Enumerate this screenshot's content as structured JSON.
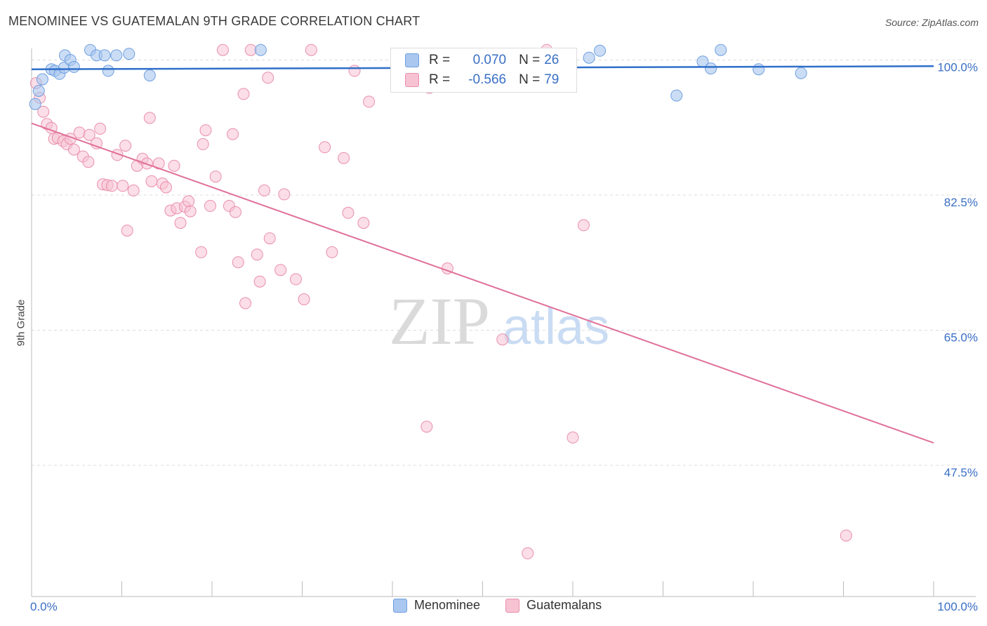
{
  "title": "MENOMINEE VS GUATEMALAN 9TH GRADE CORRELATION CHART",
  "source": "Source: ZipAtlas.com",
  "watermark": {
    "zip": "ZIP",
    "atlas": "atlas"
  },
  "legend": {
    "rows": [
      {
        "r_label": "R =",
        "r_value": "0.070",
        "n_label": "N =",
        "n_value": "26",
        "color": "#a9c7ef",
        "border": "#6f9fe0"
      },
      {
        "r_label": "R =",
        "r_value": "-0.566",
        "n_label": "N =",
        "n_value": "79",
        "color": "#f7c3d3",
        "border": "#e98fad"
      }
    ]
  },
  "bottom_legend": [
    {
      "label": "Menominee",
      "color": "#a9c7ef",
      "border": "#6f9fe0"
    },
    {
      "label": "Guatemalans",
      "color": "#f7c3d3",
      "border": "#e98fad"
    }
  ],
  "chart_data": {
    "type": "scatter",
    "title": "MENOMINEE VS GUATEMALAN 9TH GRADE CORRELATION CHART",
    "xlabel": "",
    "ylabel": "9th Grade",
    "xlim": [
      0,
      100
    ],
    "ylim": [
      30.5,
      101.5
    ],
    "x_tick_labels": [
      "0.0%",
      "100.0%"
    ],
    "y_ticks": [
      100,
      82.5,
      65,
      47.5
    ],
    "y_tick_labels": [
      "100.0%",
      "82.5%",
      "65.0%",
      "47.5%"
    ],
    "grid": true,
    "series": [
      {
        "name": "Menominee",
        "color": "#6f9fe0",
        "fill": "#a9c7ef",
        "trend": {
          "y_at_0": 98.8,
          "y_at_100": 99.2,
          "stroke": "#2f6fc9"
        },
        "points": [
          [
            0.4,
            94.3
          ],
          [
            0.8,
            96.0
          ],
          [
            1.2,
            97.5
          ],
          [
            2.2,
            98.8
          ],
          [
            2.6,
            98.6
          ],
          [
            3.1,
            98.2
          ],
          [
            3.6,
            99.0
          ],
          [
            3.7,
            100.6
          ],
          [
            4.3,
            100.0
          ],
          [
            4.7,
            99.1
          ],
          [
            6.5,
            101.3
          ],
          [
            7.2,
            100.6
          ],
          [
            8.1,
            100.6
          ],
          [
            8.5,
            98.6
          ],
          [
            9.4,
            100.6
          ],
          [
            10.8,
            100.8
          ],
          [
            13.1,
            98.0
          ],
          [
            25.4,
            101.3
          ],
          [
            63.0,
            101.2
          ],
          [
            61.8,
            100.3
          ],
          [
            71.5,
            95.4
          ],
          [
            74.4,
            99.8
          ],
          [
            75.3,
            98.9
          ],
          [
            76.4,
            101.3
          ],
          [
            80.6,
            98.8
          ],
          [
            85.3,
            98.3
          ]
        ]
      },
      {
        "name": "Guatemalans",
        "color": "#e98fad",
        "fill": "#f7c3d3",
        "trend": {
          "y_at_0": 91.8,
          "y_at_100": 50.4,
          "stroke": "#e0709a"
        },
        "points": [
          [
            0.5,
            97.0
          ],
          [
            0.9,
            95.1
          ],
          [
            1.3,
            93.3
          ],
          [
            1.7,
            91.7
          ],
          [
            2.2,
            91.2
          ],
          [
            2.5,
            89.8
          ],
          [
            2.9,
            89.9
          ],
          [
            3.5,
            89.5
          ],
          [
            3.9,
            89.1
          ],
          [
            4.3,
            89.8
          ],
          [
            4.7,
            88.4
          ],
          [
            5.3,
            90.6
          ],
          [
            5.7,
            87.5
          ],
          [
            6.3,
            86.8
          ],
          [
            6.4,
            90.3
          ],
          [
            7.2,
            89.2
          ],
          [
            7.6,
            91.1
          ],
          [
            7.9,
            83.9
          ],
          [
            8.4,
            83.8
          ],
          [
            8.9,
            83.7
          ],
          [
            9.5,
            87.7
          ],
          [
            10.1,
            83.7
          ],
          [
            10.4,
            88.9
          ],
          [
            10.6,
            77.9
          ],
          [
            11.3,
            83.1
          ],
          [
            11.7,
            86.3
          ],
          [
            12.3,
            87.2
          ],
          [
            12.8,
            86.6
          ],
          [
            13.1,
            92.5
          ],
          [
            13.3,
            84.3
          ],
          [
            14.1,
            86.6
          ],
          [
            14.5,
            84.0
          ],
          [
            14.9,
            83.5
          ],
          [
            15.4,
            80.5
          ],
          [
            15.8,
            86.3
          ],
          [
            16.1,
            80.8
          ],
          [
            16.5,
            78.9
          ],
          [
            17.0,
            81.0
          ],
          [
            17.4,
            81.7
          ],
          [
            17.6,
            80.4
          ],
          [
            18.8,
            75.1
          ],
          [
            19.0,
            89.1
          ],
          [
            19.3,
            90.9
          ],
          [
            19.8,
            81.1
          ],
          [
            20.4,
            84.9
          ],
          [
            21.2,
            101.3
          ],
          [
            21.9,
            81.1
          ],
          [
            22.3,
            90.4
          ],
          [
            22.6,
            80.3
          ],
          [
            22.9,
            73.8
          ],
          [
            23.5,
            95.6
          ],
          [
            23.7,
            68.5
          ],
          [
            24.3,
            101.3
          ],
          [
            25.0,
            74.8
          ],
          [
            25.3,
            71.3
          ],
          [
            25.8,
            83.1
          ],
          [
            26.2,
            97.7
          ],
          [
            26.4,
            76.9
          ],
          [
            27.6,
            72.8
          ],
          [
            28.0,
            82.6
          ],
          [
            29.3,
            71.6
          ],
          [
            30.2,
            69.0
          ],
          [
            31.0,
            101.3
          ],
          [
            32.5,
            88.7
          ],
          [
            33.3,
            75.1
          ],
          [
            34.6,
            87.3
          ],
          [
            35.1,
            80.2
          ],
          [
            35.8,
            98.6
          ],
          [
            36.8,
            78.9
          ],
          [
            37.4,
            94.6
          ],
          [
            43.8,
            52.5
          ],
          [
            44.1,
            96.4
          ],
          [
            46.1,
            73.0
          ],
          [
            52.2,
            63.8
          ],
          [
            55.0,
            36.1
          ],
          [
            57.1,
            101.3
          ],
          [
            60.0,
            51.1
          ],
          [
            61.2,
            78.6
          ],
          [
            90.3,
            38.4
          ]
        ]
      }
    ]
  }
}
